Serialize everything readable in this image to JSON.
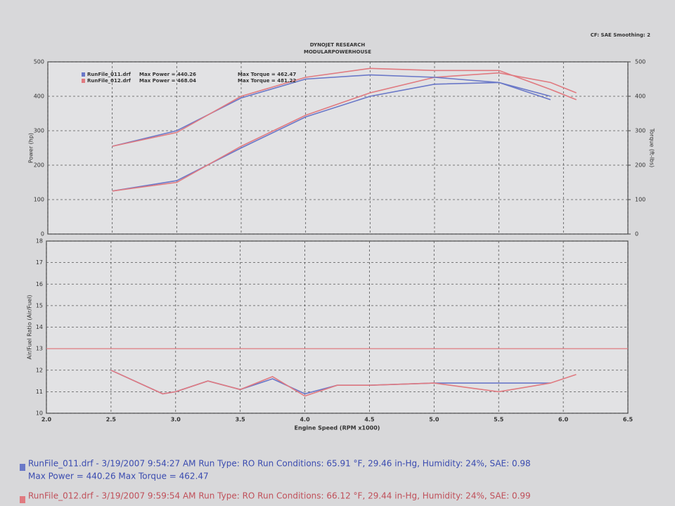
{
  "header": {
    "company": "DYNOJET RESEARCH",
    "shop": "MODULARPOWERHOUSE",
    "settings": "CF: SAE  Smoothing: 2"
  },
  "chart_data": [
    {
      "type": "line",
      "ylabel": "Power (hp)",
      "y2label": "Torque (ft-lbs)",
      "runs": [
        {
          "name": "RunFile_011.drf",
          "color": "#6a78c8",
          "max_power": "Max Power = 440.26",
          "max_torque": "Max Torque = 462.47"
        },
        {
          "name": "RunFile_012.drf",
          "color": "#e07a80",
          "max_power": "Max Power = 468.04",
          "max_torque": "Max Torque = 481.22"
        }
      ],
      "x": [
        2.5,
        3.0,
        3.5,
        4.0,
        4.5,
        5.0,
        5.5,
        5.9,
        6.1
      ],
      "series": [
        {
          "color": "#6a78c8",
          "values": [
            125,
            155,
            250,
            340,
            400,
            435,
            440,
            400,
            null
          ]
        },
        {
          "color": "#e07a80",
          "values": [
            125,
            150,
            255,
            345,
            410,
            455,
            468,
            440,
            410
          ]
        },
        {
          "color": "#6a78c8",
          "axis": "y2",
          "values": [
            255,
            300,
            395,
            450,
            462,
            455,
            440,
            390,
            null
          ]
        },
        {
          "color": "#e07a80",
          "axis": "y2",
          "values": [
            255,
            295,
            400,
            455,
            481,
            475,
            475,
            420,
            390
          ]
        }
      ],
      "xlim": [
        2,
        6.5
      ],
      "xticks": [
        {
          "value": 2,
          "label": "2.0"
        },
        2.5,
        {
          "value": 3,
          "label": "3.0"
        },
        3.5,
        {
          "value": 4,
          "label": "4.0"
        },
        4.5,
        {
          "value": 5,
          "label": "5.0"
        },
        5.5,
        {
          "value": 6,
          "label": "6.0"
        },
        6.5
      ],
      "ylim": [
        0,
        500
      ],
      "yticks": [
        0,
        100,
        200,
        300,
        400,
        500
      ],
      "y2lim": [
        0,
        500
      ],
      "y2ticks": [
        0,
        100,
        200,
        300,
        400,
        500
      ],
      "grid": true
    },
    {
      "type": "line",
      "ylabel": "Air/Fuel Ratio (Air/Fuel)",
      "xlabel": "Engine Speed (RPM x1000)",
      "x": [
        2.5,
        2.9,
        3.0,
        3.25,
        3.5,
        3.75,
        4.0,
        4.25,
        4.5,
        5.0,
        5.5,
        5.9,
        6.1
      ],
      "series": [
        {
          "color": "#6a78c8",
          "values": [
            12.0,
            10.9,
            11.0,
            11.5,
            11.1,
            11.6,
            10.9,
            11.3,
            11.3,
            11.4,
            11.4,
            11.4,
            null
          ]
        },
        {
          "color": "#e07a80",
          "values": [
            12.0,
            10.9,
            11.0,
            11.5,
            11.1,
            11.7,
            10.8,
            11.3,
            11.3,
            11.4,
            11.0,
            11.4,
            11.8
          ]
        }
      ],
      "reference_line": 13,
      "reference_color": "#e07a80",
      "xlim": [
        2,
        6.5
      ],
      "xticks": [
        {
          "value": 2,
          "label": "2.0"
        },
        2.5,
        {
          "value": 3,
          "label": "3.0"
        },
        3.5,
        {
          "value": 4,
          "label": "4.0"
        },
        4.5,
        {
          "value": 5,
          "label": "5.0"
        },
        5.5,
        {
          "value": 6,
          "label": "6.0"
        },
        6.5
      ],
      "ylim": [
        10,
        18
      ],
      "yticks": [
        10,
        11,
        12,
        13,
        14,
        15,
        16,
        17,
        18
      ],
      "grid": true
    }
  ],
  "footer": {
    "runs": [
      {
        "line1": "RunFile_011.drf - 3/19/2007 9:54:27 AM  Run Type: RO  Run Conditions: 65.91 °F, 29.46 in-Hg,  Humidity: 24%, SAE: 0.98",
        "line2": "Max Power = 440.26  Max Torque = 462.47"
      },
      {
        "line1": "RunFile_012.drf - 3/19/2007 9:59:54 AM  Run Type: RO  Run Conditions: 66.12 °F, 29.44 in-Hg,  Humidity: 24%, SAE: 0.99"
      }
    ]
  }
}
